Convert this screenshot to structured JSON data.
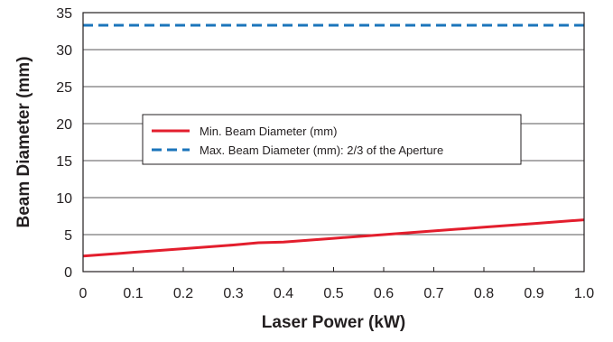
{
  "chart_data": {
    "type": "line",
    "xlabel": "Laser Power (kW)",
    "ylabel": "Beam Diameter (mm)",
    "xlim": [
      0,
      1.0
    ],
    "ylim": [
      0,
      35
    ],
    "x_ticks": [
      "0",
      "0.1",
      "0.2",
      "0.3",
      "0.4",
      "0.5",
      "0.6",
      "0.7",
      "0.8",
      "0.9",
      "1.0"
    ],
    "y_ticks": [
      "0",
      "5",
      "10",
      "15",
      "20",
      "25",
      "30",
      "35"
    ],
    "grid": "horizontal",
    "legend_position": "center",
    "series": [
      {
        "name": "Min. Beam Diameter (mm)",
        "color": "#e31e2d",
        "style": "solid",
        "x": [
          0,
          0.1,
          0.2,
          0.3,
          0.35,
          0.4,
          0.5,
          0.6,
          0.7,
          0.8,
          0.9,
          1.0
        ],
        "y": [
          2.1,
          2.6,
          3.1,
          3.6,
          3.9,
          4.0,
          4.5,
          5.0,
          5.5,
          6.0,
          6.5,
          7.0
        ]
      },
      {
        "name": "Max. Beam Diameter (mm): 2/3 of the Aperture",
        "color": "#1b75bb",
        "style": "dashed",
        "x": [
          0,
          1.0
        ],
        "y": [
          33.3,
          33.3
        ]
      }
    ]
  }
}
